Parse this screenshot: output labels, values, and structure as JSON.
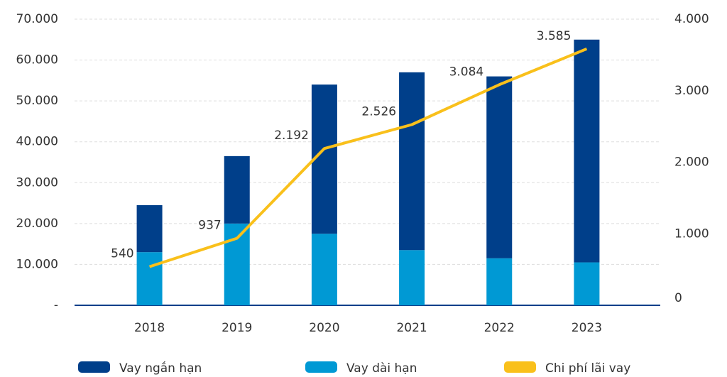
{
  "chart_data": {
    "type": "bar",
    "categories": [
      "2018",
      "2019",
      "2020",
      "2021",
      "2022",
      "2023"
    ],
    "series": [
      {
        "name": "Vay ngắn hạn",
        "color": "#003f8a",
        "type": "bar",
        "values": [
          11500,
          16500,
          36500,
          43500,
          44500,
          54500
        ]
      },
      {
        "name": "Vay dài hạn",
        "color": "#0099d4",
        "type": "bar",
        "values": [
          13000,
          20000,
          17500,
          13500,
          11500,
          10500
        ]
      },
      {
        "name": "Chi phí lãi vay",
        "color": "#f9c01b",
        "type": "line",
        "axis": "y2",
        "values": [
          540,
          937,
          2192,
          2526,
          3084,
          3585
        ],
        "value_labels": [
          "540",
          "937",
          "2.192",
          "2.526",
          "3.084",
          "3.585"
        ]
      }
    ],
    "ylim": [
      0,
      70000
    ],
    "yticks": [
      {
        "value": 0,
        "label": "-"
      },
      {
        "value": 10000,
        "label": "10.000"
      },
      {
        "value": 20000,
        "label": "20.000"
      },
      {
        "value": 30000,
        "label": "30.000"
      },
      {
        "value": 40000,
        "label": "40.000"
      },
      {
        "value": 50000,
        "label": "50.000"
      },
      {
        "value": 60000,
        "label": "60.000"
      },
      {
        "value": 70000,
        "label": "70.000"
      }
    ],
    "y2lim": [
      0,
      4000
    ],
    "y2ticks": [
      0,
      {
        "value": 1000,
        "label": "1.000"
      },
      {
        "value": 2000,
        "label": "2.000"
      },
      {
        "value": 3000,
        "label": "3.000"
      },
      {
        "value": 4000,
        "label": "4.000"
      }
    ],
    "grid": true,
    "legend": "bottom"
  }
}
